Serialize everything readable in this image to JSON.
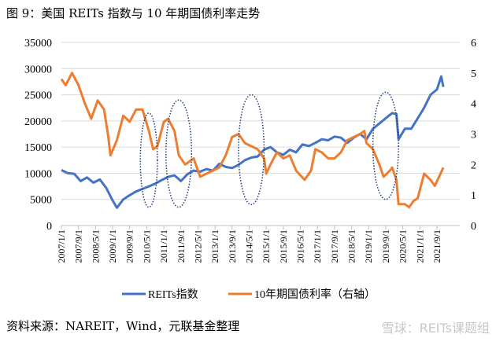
{
  "title": "图 9：美国 REITs 指数与 10 年期国债利率走势",
  "source": "资料来源：NAREIT，Wind，元联基金整理",
  "watermark": "雪球：REITs课题组",
  "chart_data": {
    "type": "line",
    "title": "",
    "x_tick_labels": [
      "2007/1/1",
      "2007/9/1",
      "2008/5/1",
      "2009/1/1",
      "2009/9/1",
      "2010/5/1",
      "2011/1/1",
      "2011/9/1",
      "2012/5/1",
      "2013/1/1",
      "2013/9/1",
      "2014/5/1",
      "2015/1/1",
      "2015/9/1",
      "2016/5/1",
      "2017/1/1",
      "2017/9/1",
      "2018/5/1",
      "2019/1/1",
      "2019/9/1",
      "2020/5/1",
      "2021/1/1",
      "2021/9/1"
    ],
    "y_left": {
      "range": [
        0,
        35000
      ],
      "ticks": [
        0,
        5000,
        10000,
        15000,
        20000,
        25000,
        30000,
        35000
      ]
    },
    "y_right": {
      "range": [
        0,
        6
      ],
      "ticks": [
        0,
        1,
        2,
        3,
        4,
        5,
        6
      ]
    },
    "grid": true,
    "legend_position": "bottom",
    "series": [
      {
        "name": "REITs指数",
        "axis": "left",
        "color": "#4472C4",
        "points": [
          [
            "2007/1",
            10600
          ],
          [
            "2007/4",
            10000
          ],
          [
            "2007/7",
            9900
          ],
          [
            "2007/10",
            8500
          ],
          [
            "2008/1",
            9200
          ],
          [
            "2008/4",
            8200
          ],
          [
            "2008/7",
            8800
          ],
          [
            "2008/10",
            7200
          ],
          [
            "2009/1",
            4800
          ],
          [
            "2009/3",
            3400
          ],
          [
            "2009/6",
            5000
          ],
          [
            "2009/9",
            5800
          ],
          [
            "2009/12",
            6500
          ],
          [
            "2010/3",
            7000
          ],
          [
            "2010/6",
            7500
          ],
          [
            "2010/9",
            8000
          ],
          [
            "2010/12",
            8700
          ],
          [
            "2011/3",
            9300
          ],
          [
            "2011/6",
            9600
          ],
          [
            "2011/9",
            8500
          ],
          [
            "2011/12",
            9800
          ],
          [
            "2012/3",
            10500
          ],
          [
            "2012/6",
            10300
          ],
          [
            "2012/9",
            10800
          ],
          [
            "2012/12",
            10500
          ],
          [
            "2013/3",
            11800
          ],
          [
            "2013/6",
            11200
          ],
          [
            "2013/9",
            11000
          ],
          [
            "2013/12",
            11600
          ],
          [
            "2014/3",
            12500
          ],
          [
            "2014/6",
            13000
          ],
          [
            "2014/9",
            13200
          ],
          [
            "2014/12",
            14500
          ],
          [
            "2015/3",
            15000
          ],
          [
            "2015/6",
            14000
          ],
          [
            "2015/9",
            13500
          ],
          [
            "2015/12",
            14500
          ],
          [
            "2016/3",
            14000
          ],
          [
            "2016/6",
            15500
          ],
          [
            "2016/9",
            15200
          ],
          [
            "2016/12",
            15800
          ],
          [
            "2017/3",
            16500
          ],
          [
            "2017/6",
            16300
          ],
          [
            "2017/9",
            17000
          ],
          [
            "2017/12",
            16800
          ],
          [
            "2018/3",
            15800
          ],
          [
            "2018/6",
            16800
          ],
          [
            "2018/9",
            17500
          ],
          [
            "2018/12",
            16500
          ],
          [
            "2019/3",
            18500
          ],
          [
            "2019/6",
            19500
          ],
          [
            "2019/9",
            20500
          ],
          [
            "2019/12",
            21500
          ],
          [
            "2020/2",
            21300
          ],
          [
            "2020/3",
            16500
          ],
          [
            "2020/6",
            18500
          ],
          [
            "2020/9",
            18500
          ],
          [
            "2020/12",
            20500
          ],
          [
            "2021/3",
            22500
          ],
          [
            "2021/6",
            25000
          ],
          [
            "2021/9",
            26000
          ],
          [
            "2021/11",
            28500
          ],
          [
            "2021/12",
            26500
          ]
        ]
      },
      {
        "name": "10年期国债利率（右轴）",
        "axis": "right",
        "color": "#ED7D31",
        "points": [
          [
            "2007/1",
            4.8
          ],
          [
            "2007/3",
            4.6
          ],
          [
            "2007/6",
            5.0
          ],
          [
            "2007/9",
            4.6
          ],
          [
            "2007/12",
            4.0
          ],
          [
            "2008/3",
            3.5
          ],
          [
            "2008/6",
            4.1
          ],
          [
            "2008/9",
            3.8
          ],
          [
            "2008/11",
            2.9
          ],
          [
            "2008/12",
            2.3
          ],
          [
            "2009/3",
            2.8
          ],
          [
            "2009/6",
            3.6
          ],
          [
            "2009/9",
            3.4
          ],
          [
            "2009/12",
            3.8
          ],
          [
            "2010/3",
            3.8
          ],
          [
            "2010/6",
            3.1
          ],
          [
            "2010/8",
            2.5
          ],
          [
            "2010/10",
            2.6
          ],
          [
            "2011/1",
            3.4
          ],
          [
            "2011/3",
            3.5
          ],
          [
            "2011/6",
            3.1
          ],
          [
            "2011/8",
            2.3
          ],
          [
            "2011/11",
            2.0
          ],
          [
            "2012/3",
            2.2
          ],
          [
            "2012/6",
            1.6
          ],
          [
            "2012/9",
            1.7
          ],
          [
            "2012/12",
            1.8
          ],
          [
            "2013/3",
            1.9
          ],
          [
            "2013/6",
            2.3
          ],
          [
            "2013/9",
            2.9
          ],
          [
            "2013/12",
            3.0
          ],
          [
            "2014/3",
            2.7
          ],
          [
            "2014/6",
            2.6
          ],
          [
            "2014/9",
            2.5
          ],
          [
            "2014/12",
            2.2
          ],
          [
            "2015/1",
            1.7
          ],
          [
            "2015/3",
            2.0
          ],
          [
            "2015/6",
            2.4
          ],
          [
            "2015/9",
            2.2
          ],
          [
            "2015/12",
            2.3
          ],
          [
            "2016/3",
            1.8
          ],
          [
            "2016/7",
            1.5
          ],
          [
            "2016/10",
            1.8
          ],
          [
            "2016/12",
            2.5
          ],
          [
            "2017/3",
            2.4
          ],
          [
            "2017/6",
            2.2
          ],
          [
            "2017/9",
            2.2
          ],
          [
            "2017/12",
            2.4
          ],
          [
            "2018/3",
            2.8
          ],
          [
            "2018/6",
            2.9
          ],
          [
            "2018/9",
            3.0
          ],
          [
            "2018/11",
            3.1
          ],
          [
            "2018/12",
            2.7
          ],
          [
            "2019/3",
            2.5
          ],
          [
            "2019/6",
            2.0
          ],
          [
            "2019/8",
            1.6
          ],
          [
            "2019/11",
            1.8
          ],
          [
            "2019/12",
            1.9
          ],
          [
            "2020/2",
            1.5
          ],
          [
            "2020/3",
            0.7
          ],
          [
            "2020/6",
            0.7
          ],
          [
            "2020/8",
            0.6
          ],
          [
            "2020/10",
            0.8
          ],
          [
            "2020/12",
            0.9
          ],
          [
            "2021/3",
            1.7
          ],
          [
            "2021/6",
            1.5
          ],
          [
            "2021/8",
            1.3
          ],
          [
            "2021/10",
            1.6
          ],
          [
            "2021/12",
            1.9
          ]
        ]
      }
    ],
    "highlight_ellipses": [
      {
        "center": "2010/6",
        "half_width_months": 4,
        "left_range": [
          3500,
          21500
        ]
      },
      {
        "center": "2011/8",
        "half_width_months": 6,
        "left_range": [
          3500,
          24000
        ]
      },
      {
        "center": "2014/6",
        "half_width_months": 6,
        "left_range": [
          4000,
          25000
        ]
      },
      {
        "center": "2019/9",
        "half_width_months": 6,
        "left_range": [
          5000,
          25500
        ]
      }
    ]
  }
}
